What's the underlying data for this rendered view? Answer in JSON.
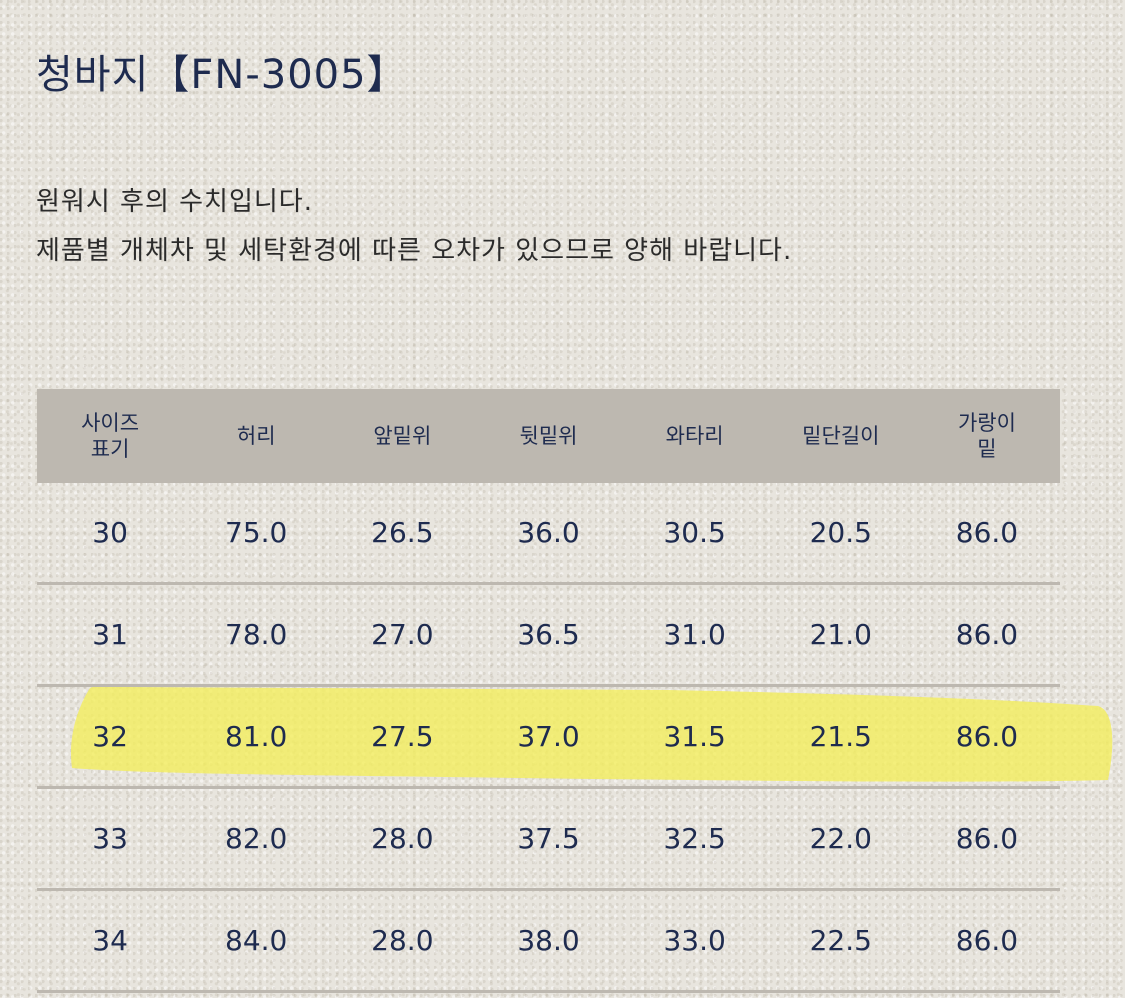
{
  "title": "청바지【FN-3005】",
  "notice": {
    "line1": "원워시 후의 수치입니다.",
    "line2": "제품별 개체차 및 세탁환경에 따른 오차가 있으므로 양해 바랍니다."
  },
  "table": {
    "headers": [
      [
        "사이즈",
        "표기"
      ],
      [
        "허리"
      ],
      [
        "앞밑위"
      ],
      [
        "뒷밑위"
      ],
      [
        "와타리"
      ],
      [
        "밑단길이"
      ],
      [
        "가랑이",
        "밑"
      ]
    ],
    "rows": [
      [
        "30",
        "75.0",
        "26.5",
        "36.0",
        "30.5",
        "20.5",
        "86.0"
      ],
      [
        "31",
        "78.0",
        "27.0",
        "36.5",
        "31.0",
        "21.0",
        "86.0"
      ],
      [
        "32",
        "81.0",
        "27.5",
        "37.0",
        "31.5",
        "21.5",
        "86.0"
      ],
      [
        "33",
        "82.0",
        "28.0",
        "37.5",
        "32.5",
        "22.0",
        "86.0"
      ],
      [
        "34",
        "84.0",
        "28.0",
        "38.0",
        "33.0",
        "22.5",
        "86.0"
      ]
    ],
    "highlighted_row": 2
  },
  "colors": {
    "text": "#1e2b4f",
    "header_bg": "#bdb8b0",
    "highlight": "#f3ee5a",
    "page_bg": "#e8e5de"
  }
}
